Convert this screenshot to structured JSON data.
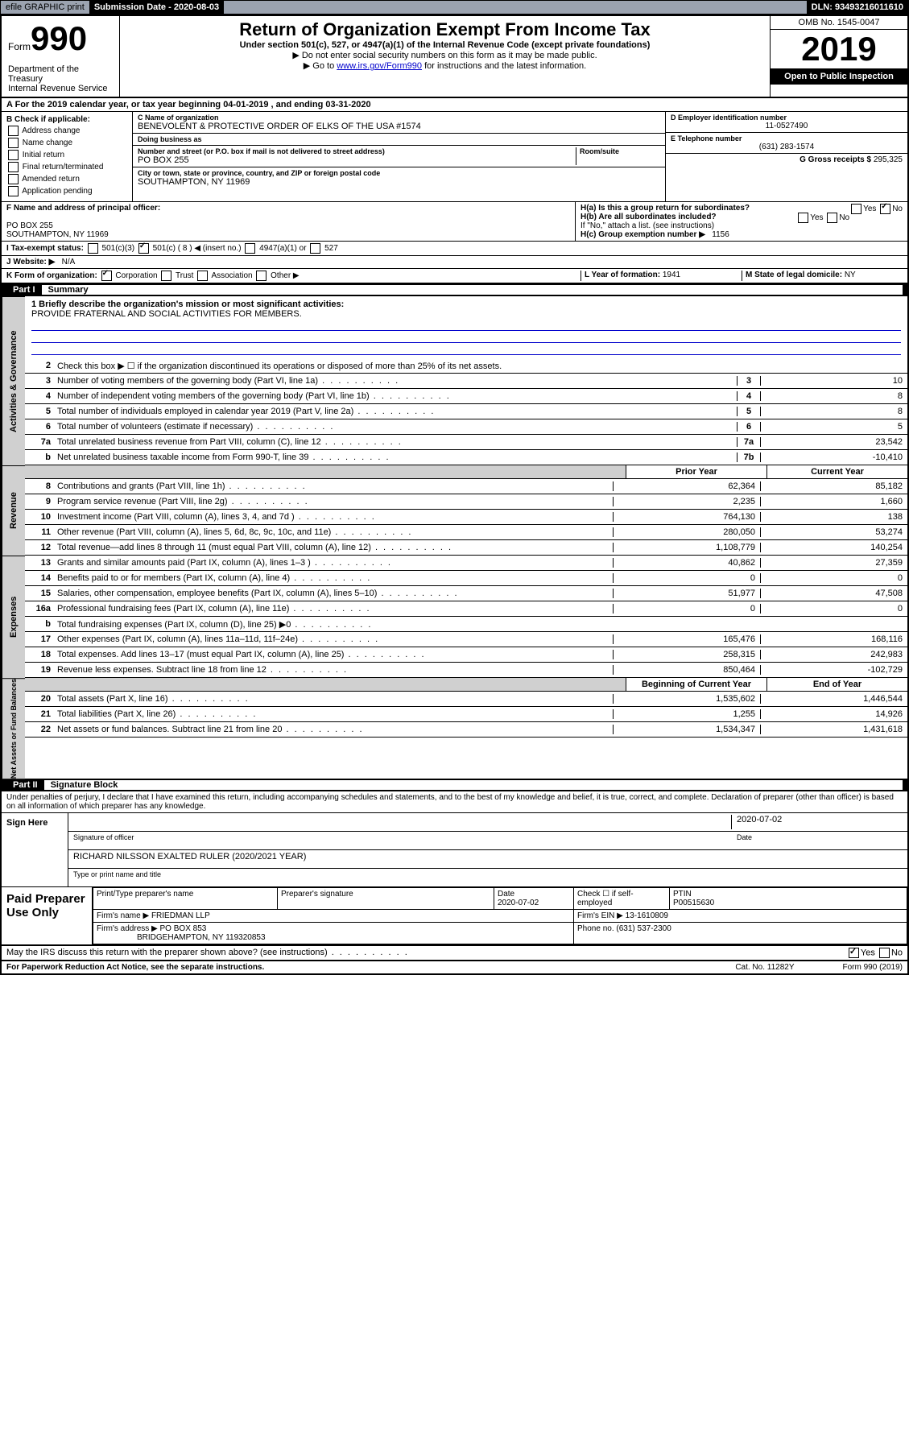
{
  "topbar": {
    "efile": "efile GRAPHIC print",
    "submission_label": "Submission Date - 2020-08-03",
    "dln": "DLN: 93493216011610"
  },
  "header": {
    "form_word": "Form",
    "form_num": "990",
    "dept": "Department of the Treasury\nInternal Revenue Service",
    "title": "Return of Organization Exempt From Income Tax",
    "subtitle": "Under section 501(c), 527, or 4947(a)(1) of the Internal Revenue Code (except private foundations)",
    "note1": "▶ Do not enter social security numbers on this form as it may be made public.",
    "note2_pre": "▶ Go to ",
    "note2_link": "www.irs.gov/Form990",
    "note2_post": " for instructions and the latest information.",
    "omb": "OMB No. 1545-0047",
    "year": "2019",
    "open": "Open to Public Inspection"
  },
  "a_line": "A For the 2019 calendar year, or tax year beginning 04-01-2019   , and ending 03-31-2020",
  "b": {
    "label": "B Check if applicable:",
    "items": [
      "Address change",
      "Name change",
      "Initial return",
      "Final return/terminated",
      "Amended return",
      "Application pending"
    ]
  },
  "c": {
    "name_label": "C Name of organization",
    "name": "BENEVOLENT & PROTECTIVE ORDER OF ELKS OF THE USA #1574",
    "dba_label": "Doing business as",
    "addr_label": "Number and street (or P.O. box if mail is not delivered to street address)",
    "addr": "PO BOX 255",
    "room_label": "Room/suite",
    "city_label": "City or town, state or province, country, and ZIP or foreign postal code",
    "city": "SOUTHAMPTON, NY  11969"
  },
  "d": {
    "label": "D Employer identification number",
    "val": "11-0527490"
  },
  "e": {
    "label": "E Telephone number",
    "val": "(631) 283-1574"
  },
  "g": {
    "label": "G Gross receipts $",
    "val": "295,325"
  },
  "f": {
    "label": "F Name and address of principal officer:",
    "addr1": "PO BOX 255",
    "addr2": "SOUTHAMPTON, NY  11969"
  },
  "h": {
    "ha": "H(a)  Is this a group return for subordinates?",
    "hb": "H(b)  Are all subordinates included?",
    "hb_note": "If \"No,\" attach a list. (see instructions)",
    "hc": "H(c)  Group exemption number ▶",
    "hc_val": "1156"
  },
  "i": {
    "label": "I  Tax-exempt status:",
    "opt1": "501(c)(3)",
    "opt2": "501(c) ( 8 ) ◀ (insert no.)",
    "opt3": "4947(a)(1) or",
    "opt4": "527"
  },
  "j": {
    "label": "J  Website: ▶",
    "val": "N/A"
  },
  "k": {
    "label": "K Form of organization:",
    "corp": "Corporation",
    "trust": "Trust",
    "assoc": "Association",
    "other": "Other ▶"
  },
  "l": {
    "label": "L Year of formation:",
    "val": "1941"
  },
  "m": {
    "label": "M State of legal domicile:",
    "val": "NY"
  },
  "part1": {
    "num": "Part I",
    "title": "Summary"
  },
  "mission": {
    "label": "1  Briefly describe the organization's mission or most significant activities:",
    "text": "PROVIDE FRATERNAL AND SOCIAL ACTIVITIES FOR MEMBERS."
  },
  "lines_single": [
    {
      "n": "2",
      "d": "Check this box ▶ ☐ if the organization discontinued its operations or disposed of more than 25% of its net assets."
    },
    {
      "n": "3",
      "d": "Number of voting members of the governing body (Part VI, line 1a)",
      "box": "3",
      "v": "10"
    },
    {
      "n": "4",
      "d": "Number of independent voting members of the governing body (Part VI, line 1b)",
      "box": "4",
      "v": "8"
    },
    {
      "n": "5",
      "d": "Total number of individuals employed in calendar year 2019 (Part V, line 2a)",
      "box": "5",
      "v": "8"
    },
    {
      "n": "6",
      "d": "Total number of volunteers (estimate if necessary)",
      "box": "6",
      "v": "5"
    },
    {
      "n": "7a",
      "d": "Total unrelated business revenue from Part VIII, column (C), line 12",
      "box": "7a",
      "v": "23,542"
    },
    {
      "n": "b",
      "d": "Net unrelated business taxable income from Form 990-T, line 39",
      "box": "7b",
      "v": "-10,410"
    }
  ],
  "col_headers": {
    "prior": "Prior Year",
    "current": "Current Year",
    "boy": "Beginning of Current Year",
    "eoy": "End of Year"
  },
  "revenue": [
    {
      "n": "8",
      "d": "Contributions and grants (Part VIII, line 1h)",
      "p": "62,364",
      "c": "85,182"
    },
    {
      "n": "9",
      "d": "Program service revenue (Part VIII, line 2g)",
      "p": "2,235",
      "c": "1,660"
    },
    {
      "n": "10",
      "d": "Investment income (Part VIII, column (A), lines 3, 4, and 7d )",
      "p": "764,130",
      "c": "138"
    },
    {
      "n": "11",
      "d": "Other revenue (Part VIII, column (A), lines 5, 6d, 8c, 9c, 10c, and 11e)",
      "p": "280,050",
      "c": "53,274"
    },
    {
      "n": "12",
      "d": "Total revenue—add lines 8 through 11 (must equal Part VIII, column (A), line 12)",
      "p": "1,108,779",
      "c": "140,254"
    }
  ],
  "expenses": [
    {
      "n": "13",
      "d": "Grants and similar amounts paid (Part IX, column (A), lines 1–3 )",
      "p": "40,862",
      "c": "27,359"
    },
    {
      "n": "14",
      "d": "Benefits paid to or for members (Part IX, column (A), line 4)",
      "p": "0",
      "c": "0"
    },
    {
      "n": "15",
      "d": "Salaries, other compensation, employee benefits (Part IX, column (A), lines 5–10)",
      "p": "51,977",
      "c": "47,508"
    },
    {
      "n": "16a",
      "d": "Professional fundraising fees (Part IX, column (A), line 11e)",
      "p": "0",
      "c": "0"
    },
    {
      "n": "b",
      "d": "Total fundraising expenses (Part IX, column (D), line 25) ▶0",
      "p": "",
      "c": "",
      "shade": true
    },
    {
      "n": "17",
      "d": "Other expenses (Part IX, column (A), lines 11a–11d, 11f–24e)",
      "p": "165,476",
      "c": "168,116"
    },
    {
      "n": "18",
      "d": "Total expenses. Add lines 13–17 (must equal Part IX, column (A), line 25)",
      "p": "258,315",
      "c": "242,983"
    },
    {
      "n": "19",
      "d": "Revenue less expenses. Subtract line 18 from line 12",
      "p": "850,464",
      "c": "-102,729"
    }
  ],
  "netassets": [
    {
      "n": "20",
      "d": "Total assets (Part X, line 16)",
      "p": "1,535,602",
      "c": "1,446,544"
    },
    {
      "n": "21",
      "d": "Total liabilities (Part X, line 26)",
      "p": "1,255",
      "c": "14,926"
    },
    {
      "n": "22",
      "d": "Net assets or fund balances. Subtract line 21 from line 20",
      "p": "1,534,347",
      "c": "1,431,618"
    }
  ],
  "sidelabels": {
    "gov": "Activities & Governance",
    "rev": "Revenue",
    "exp": "Expenses",
    "net": "Net Assets or Fund Balances"
  },
  "part2": {
    "num": "Part II",
    "title": "Signature Block"
  },
  "perjury": "Under penalties of perjury, I declare that I have examined this return, including accompanying schedules and statements, and to the best of my knowledge and belief, it is true, correct, and complete. Declaration of preparer (other than officer) is based on all information of which preparer has any knowledge.",
  "sign": {
    "label": "Sign Here",
    "date": "2020-07-02",
    "sig_label": "Signature of officer",
    "date_label": "Date",
    "name": "RICHARD NILSSON  EXALTED RULER (2020/2021 YEAR)",
    "name_label": "Type or print name and title"
  },
  "preparer": {
    "label": "Paid Preparer Use Only",
    "h1": "Print/Type preparer's name",
    "h2": "Preparer's signature",
    "h3": "Date",
    "date": "2020-07-02",
    "h4_pre": "Check ☐ if self-employed",
    "h5": "PTIN",
    "ptin": "P00515630",
    "firm_label": "Firm's name    ▶",
    "firm": "FRIEDMAN LLP",
    "ein_label": "Firm's EIN ▶",
    "ein": "13-1610809",
    "addr_label": "Firm's address ▶",
    "addr": "PO BOX 853",
    "addr2": "BRIDGEHAMPTON, NY  119320853",
    "phone_label": "Phone no.",
    "phone": "(631) 537-2300"
  },
  "discuss": "May the IRS discuss this return with the preparer shown above? (see instructions)",
  "footer": {
    "left": "For Paperwork Reduction Act Notice, see the separate instructions.",
    "mid": "Cat. No. 11282Y",
    "right": "Form 990 (2019)"
  }
}
